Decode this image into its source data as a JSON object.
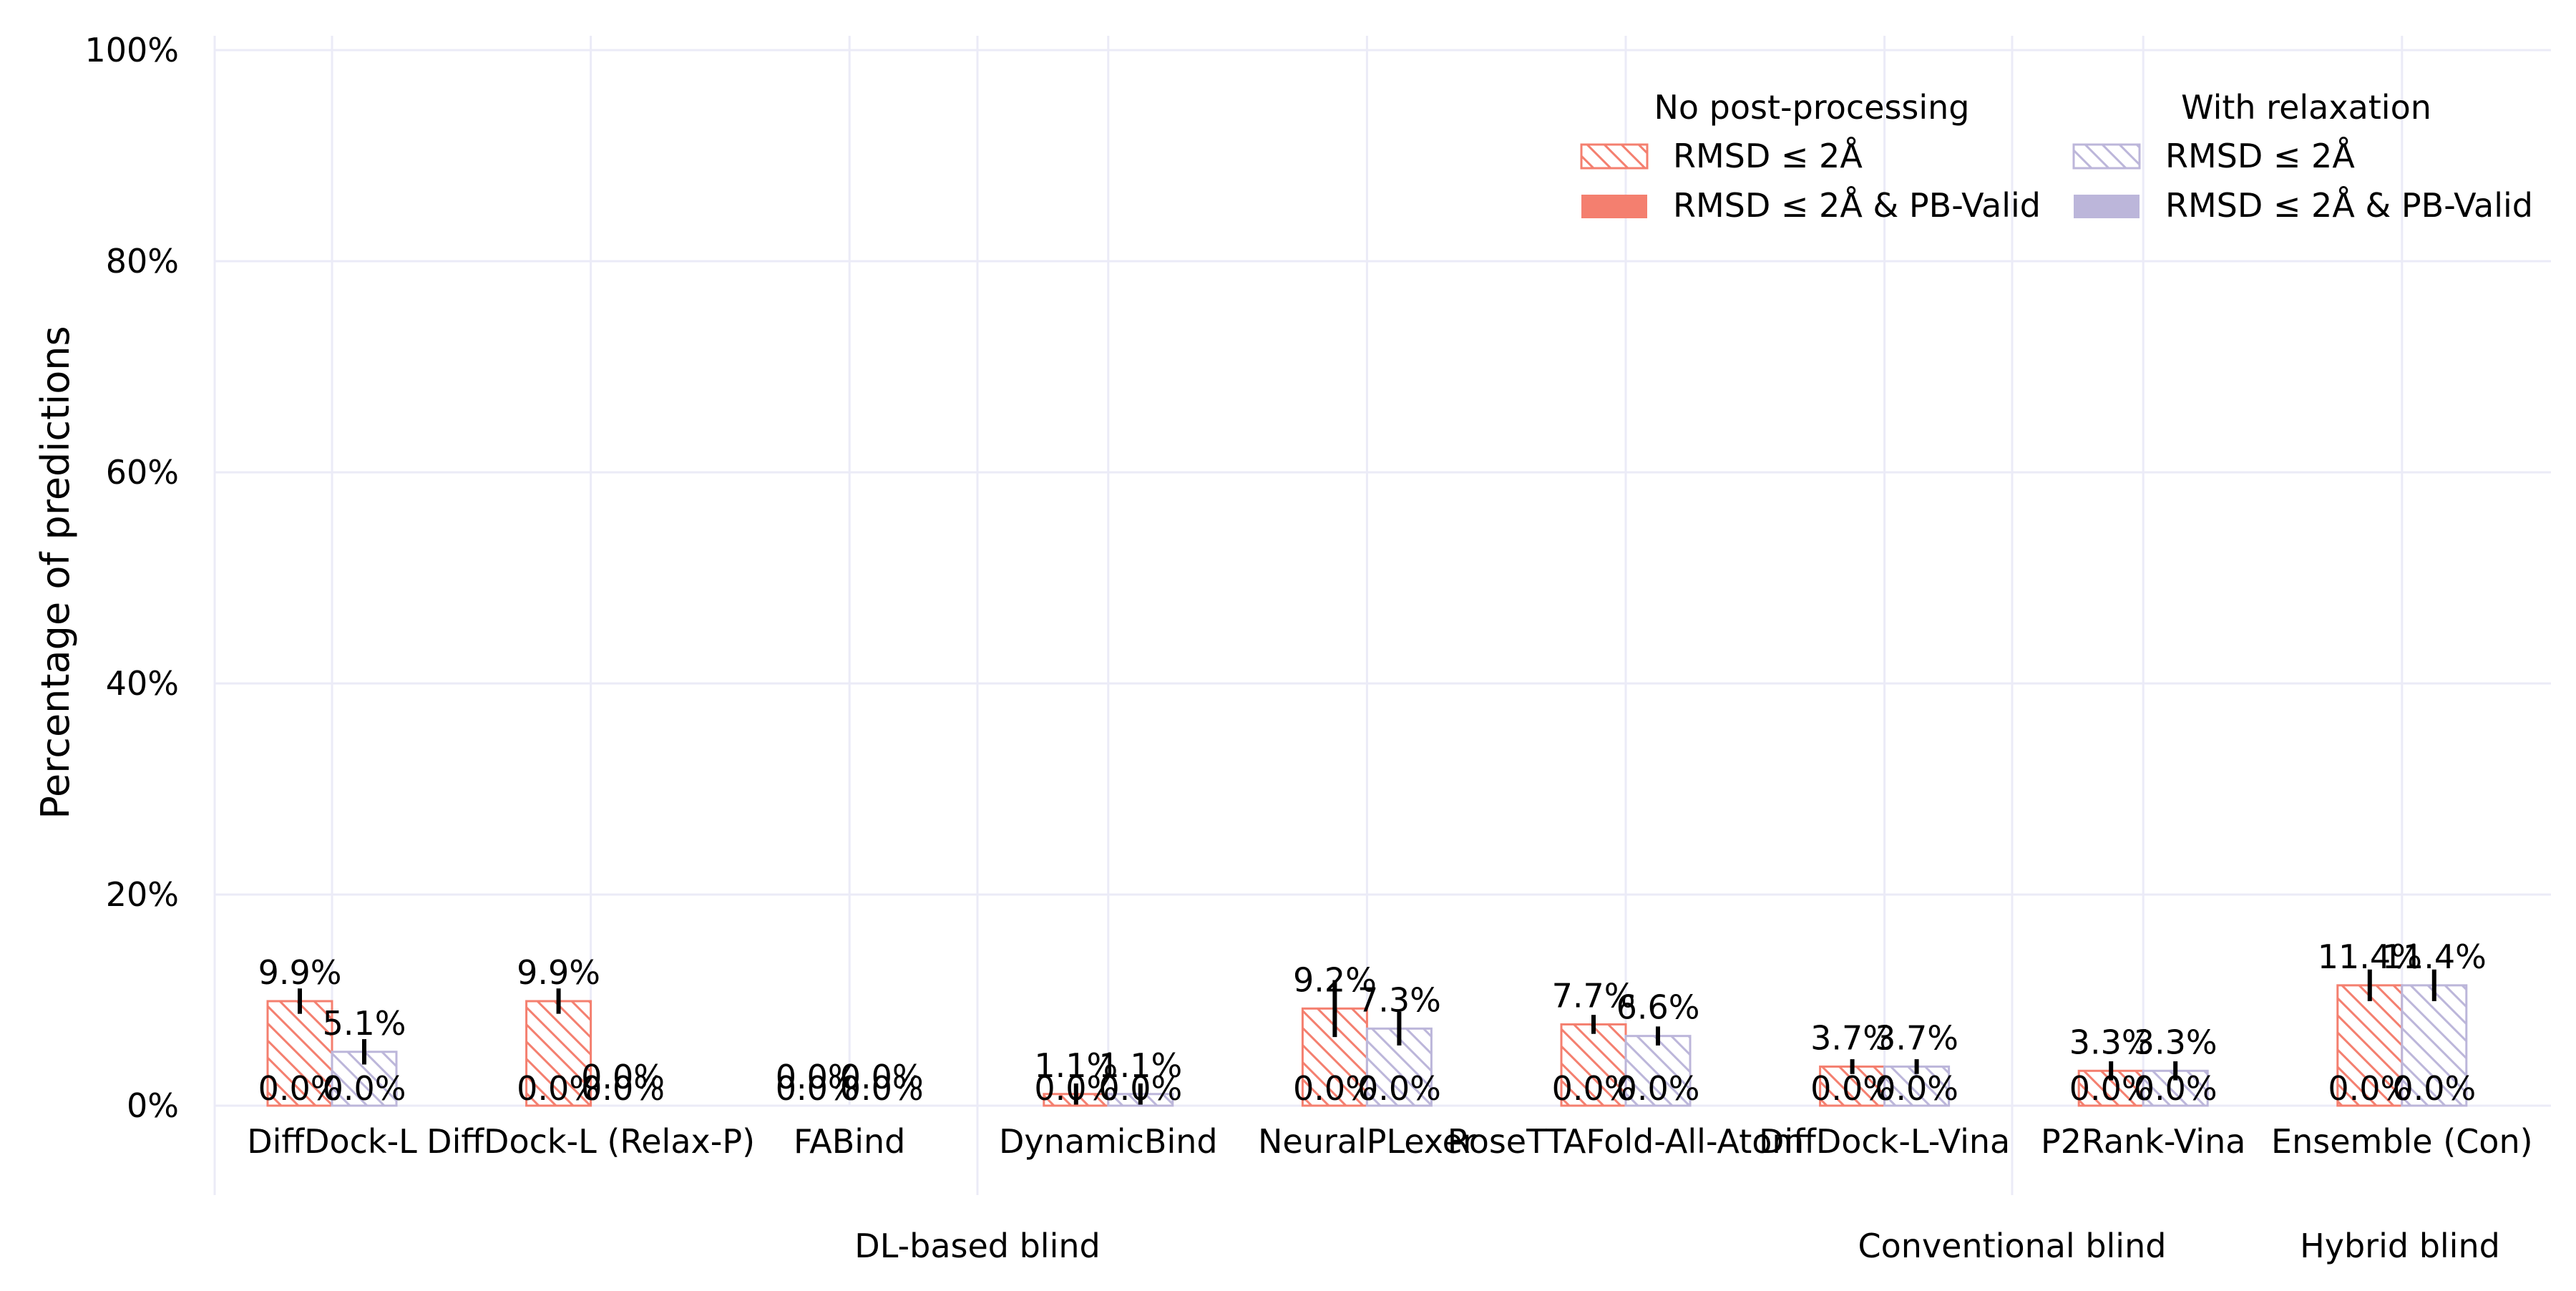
{
  "chart_data": {
    "type": "bar",
    "ylabel": "Percentage of predictions",
    "xlabel": "",
    "ylim": [
      0,
      100
    ],
    "yticks": [
      0,
      20,
      40,
      60,
      80,
      100
    ],
    "ytick_labels": [
      "0%",
      "20%",
      "40%",
      "60%",
      "80%",
      "100%"
    ],
    "grid": true,
    "categories": [
      "DiffDock-L",
      "DiffDock-L (Relax-P)",
      "FABind",
      "DynamicBind",
      "NeuralPLexer",
      "RoseTTAFold-All-Atom",
      "DiffDock-L-Vina",
      "P2Rank-Vina",
      "Ensemble (Con)"
    ],
    "groups": [
      {
        "label": "DL-based blind",
        "categories": [
          "DiffDock-L",
          "DiffDock-L (Relax-P)",
          "FABind",
          "DynamicBind",
          "NeuralPLexer",
          "RoseTTAFold-All-Atom"
        ]
      },
      {
        "label": "Conventional blind",
        "categories": [
          "DiffDock-L-Vina",
          "P2Rank-Vina"
        ]
      },
      {
        "label": "Hybrid blind",
        "categories": [
          "Ensemble (Con)"
        ]
      }
    ],
    "legend": {
      "placement": "top-right",
      "columns": [
        {
          "title": "No post-processing",
          "entries": [
            "RMSD ≤ 2Å",
            "RMSD ≤ 2Å & PB-Valid"
          ]
        },
        {
          "title": "With relaxation",
          "entries": [
            "RMSD ≤ 2Å",
            "RMSD ≤ 2Å & PB-Valid"
          ]
        }
      ]
    },
    "colors": {
      "no_post": "#f47f6f",
      "relax": "#bcb6da",
      "grid": "#ebebf7",
      "errorbar": "#000000"
    },
    "series": [
      {
        "name": "RMSD ≤ 2Å",
        "group": "No post-processing",
        "style": "hatched",
        "color": "#f47f6f",
        "values": [
          9.9,
          9.9,
          0.0,
          1.1,
          9.2,
          7.7,
          3.7,
          3.3,
          11.4
        ],
        "labels": [
          "9.9%",
          "9.9%",
          "0.0%",
          "1.1%",
          "9.2%",
          "7.7%",
          "3.7%",
          "3.3%",
          "11.4%"
        ],
        "err": [
          1.2,
          1.2,
          0,
          1.0,
          2.7,
          0.9,
          0.7,
          0.9,
          1.5
        ]
      },
      {
        "name": "RMSD ≤ 2Å & PB-Valid",
        "group": "No post-processing",
        "style": "solid",
        "color": "#f47f6f",
        "values": [
          0.0,
          0.0,
          0.0,
          0.0,
          0.0,
          0.0,
          0.0,
          0.0,
          0.0
        ],
        "labels": [
          "0.0%",
          "0.0%",
          "0.0%",
          "0.0%",
          "0.0%",
          "0.0%",
          "0.0%",
          "0.0%",
          "0.0%"
        ]
      },
      {
        "name": "RMSD ≤ 2Å",
        "group": "With relaxation",
        "style": "hatched",
        "color": "#bcb6da",
        "values": [
          5.1,
          0.0,
          0.0,
          1.1,
          7.3,
          6.6,
          3.7,
          3.3,
          11.4
        ],
        "labels": [
          "5.1%",
          "0.0%",
          "0.0%",
          "1.1%",
          "7.3%",
          "6.6%",
          "3.7%",
          "3.3%",
          "11.4%"
        ],
        "err": [
          1.2,
          0,
          0,
          1.0,
          1.6,
          0.9,
          0.7,
          0.9,
          1.5
        ]
      },
      {
        "name": "RMSD ≤ 2Å & PB-Valid",
        "group": "With relaxation",
        "style": "solid",
        "color": "#bcb6da",
        "values": [
          0.0,
          0.0,
          0.0,
          0.0,
          0.0,
          0.0,
          0.0,
          0.0,
          0.0
        ],
        "labels": [
          "0.0%",
          "0.0%",
          "0.0%",
          "0.0%",
          "0.0%",
          "0.0%",
          "0.0%",
          "0.0%",
          "0.0%"
        ]
      }
    ]
  }
}
